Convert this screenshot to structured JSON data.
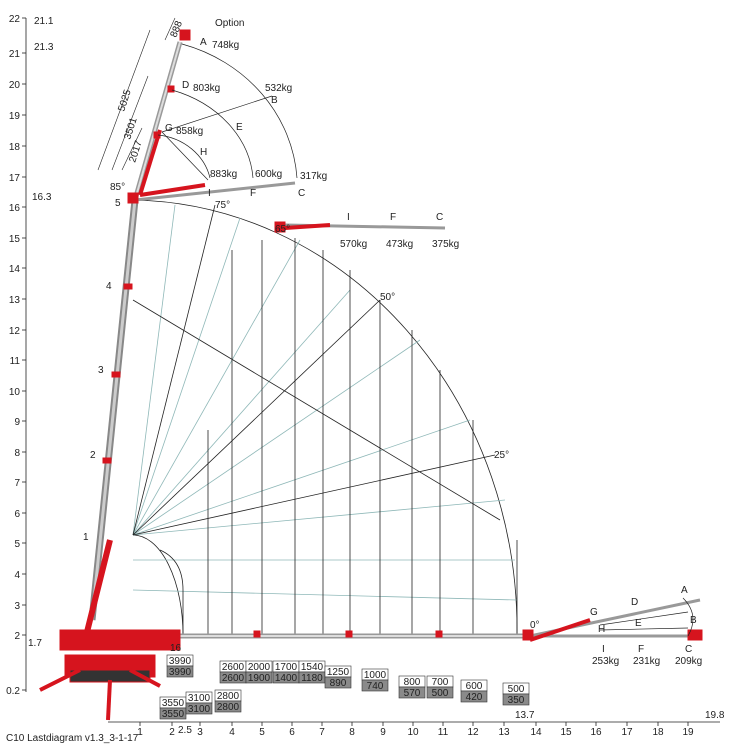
{
  "caption": "C10 Lastdiagram v1.3_3-1-17",
  "option_label": "Option",
  "y_ticks": [
    "22",
    "21",
    "20",
    "19",
    "18",
    "17",
    "16",
    "15",
    "14",
    "13",
    "12",
    "11",
    "10",
    "9",
    "8",
    "7",
    "6",
    "5",
    "4",
    "3",
    "2",
    "0.2"
  ],
  "y_extra_labels": [
    "21.1",
    "21.3",
    "16.3",
    "1.7"
  ],
  "x_ticks": [
    "1",
    "2",
    "3",
    "4",
    "5",
    "6",
    "7",
    "8",
    "9",
    "10",
    "11",
    "12",
    "13",
    "14",
    "15",
    "16",
    "17",
    "18",
    "19"
  ],
  "x_extra_labels": [
    "2.5",
    "13.7",
    "19.8"
  ],
  "angle_labels": [
    "85°",
    "75°",
    "65°",
    "50°",
    "25°",
    "0°"
  ],
  "section_labels": [
    "1",
    "2",
    "3",
    "4",
    "5"
  ],
  "dimensions": [
    "888",
    "5025",
    "3501",
    "2017"
  ],
  "upper_jib": {
    "letters": [
      "A",
      "D",
      "G",
      "B",
      "E",
      "H",
      "I",
      "F",
      "C"
    ],
    "loads": [
      "748kg",
      "803kg",
      "858kg",
      "532kg",
      "883kg",
      "600kg",
      "317kg"
    ]
  },
  "mid_jib": {
    "letters": [
      "I",
      "F",
      "C"
    ],
    "loads": [
      "570kg",
      "473kg",
      "375kg"
    ]
  },
  "low_jib": {
    "letters": [
      "A",
      "D",
      "G",
      "B",
      "E",
      "H",
      "I",
      "F",
      "C"
    ],
    "loads": [
      "253kg",
      "231kg",
      "209kg"
    ]
  },
  "floor_labels": [
    "16"
  ],
  "load_boxes": [
    {
      "top": "3990",
      "bottom": "3990"
    },
    {
      "top": "3550",
      "bottom": "3550"
    },
    {
      "top": "3100",
      "bottom": "3100"
    },
    {
      "top": "2600",
      "bottom": "2600"
    },
    {
      "top": "2800",
      "bottom": "2800"
    },
    {
      "top": "2000",
      "bottom": "1900"
    },
    {
      "top": "1700",
      "bottom": "1400"
    },
    {
      "top": "1540",
      "bottom": "1180"
    },
    {
      "top": "1250",
      "bottom": "890"
    },
    {
      "top": "1000",
      "bottom": "740"
    },
    {
      "top": "800",
      "bottom": "570"
    },
    {
      "top": "700",
      "bottom": "500"
    },
    {
      "top": "600",
      "bottom": "420"
    },
    {
      "top": "500",
      "bottom": "350"
    }
  ],
  "colors": {
    "boom": "#d6141e",
    "dark_box": "#8a8a8a",
    "grid_teal": "#8fb8b8",
    "axis": "#222"
  }
}
